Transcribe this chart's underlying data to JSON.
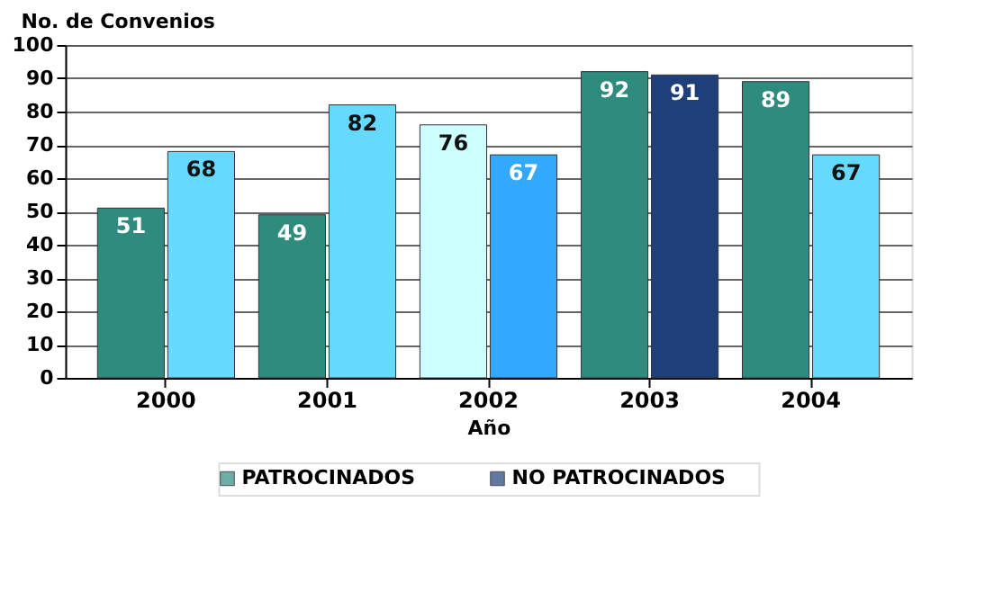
{
  "chart_data": {
    "type": "bar",
    "ylabel": "No. de Convenios",
    "xlabel": "Año",
    "categories": [
      "2000",
      "2001",
      "2002",
      "2003",
      "2004"
    ],
    "series": [
      {
        "name": "PATROCINADOS",
        "color": "#2e8b7e",
        "colors": [
          "#2e8b7e",
          "#2e8b7e",
          "#ccffff",
          "#2e8b7e",
          "#2e8b7e"
        ],
        "values": [
          51,
          49,
          76,
          92,
          89
        ]
      },
      {
        "name": "NO PATROCINADOS",
        "color": "#1f3f7a",
        "colors": [
          "#66d9ff",
          "#66d9ff",
          "#33a8ff",
          "#1f3f7a",
          "#66d9ff"
        ],
        "values": [
          68,
          82,
          67,
          91,
          67
        ]
      }
    ],
    "ylim": [
      0,
      100
    ],
    "yticks": [
      0,
      10,
      20,
      30,
      40,
      50,
      60,
      70,
      80,
      90,
      100
    ],
    "grid": "y",
    "legend": "bottom",
    "data_labels": true
  }
}
